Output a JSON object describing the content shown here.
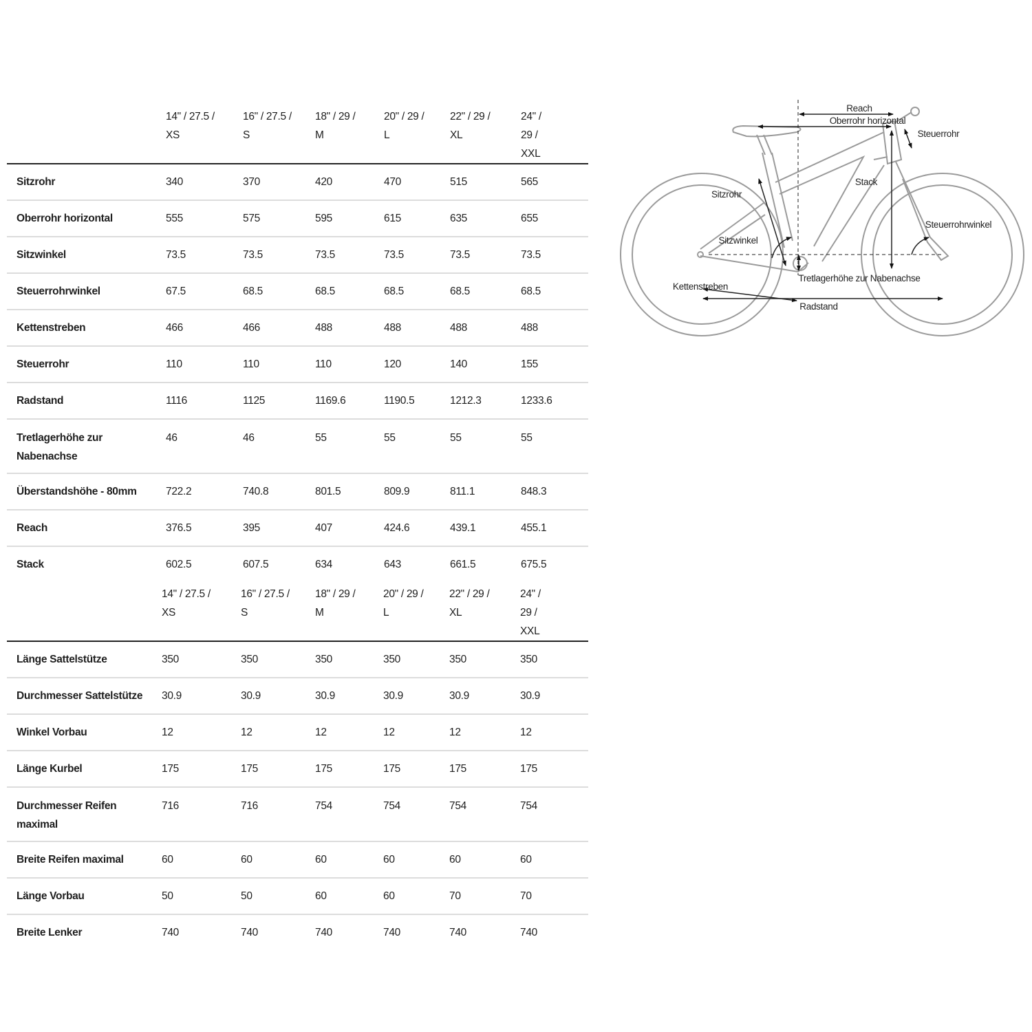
{
  "geometry_table": {
    "columns": [
      [
        "14\" / 27.5 /",
        "XS"
      ],
      [
        "16\" / 27.5 /",
        "S"
      ],
      [
        "18\" / 29 /",
        "M"
      ],
      [
        "20\" / 29 /",
        "L"
      ],
      [
        "22\" / 29 /",
        "XL"
      ],
      [
        "24\" / 29 /",
        "XXL"
      ]
    ],
    "rows": [
      {
        "label": "Sitzrohr",
        "values": [
          "340",
          "370",
          "420",
          "470",
          "515",
          "565"
        ]
      },
      {
        "label": "Oberrohr horizontal",
        "values": [
          "555",
          "575",
          "595",
          "615",
          "635",
          "655"
        ]
      },
      {
        "label": "Sitzwinkel",
        "values": [
          "73.5",
          "73.5",
          "73.5",
          "73.5",
          "73.5",
          "73.5"
        ]
      },
      {
        "label": "Steuerrohrwinkel",
        "values": [
          "67.5",
          "68.5",
          "68.5",
          "68.5",
          "68.5",
          "68.5"
        ]
      },
      {
        "label": "Kettenstreben",
        "values": [
          "466",
          "466",
          "488",
          "488",
          "488",
          "488"
        ]
      },
      {
        "label": "Steuerrohr",
        "values": [
          "110",
          "110",
          "110",
          "120",
          "140",
          "155"
        ]
      },
      {
        "label": "Radstand",
        "values": [
          "1116",
          "1125",
          "1169.6",
          "1190.5",
          "1212.3",
          "1233.6"
        ]
      },
      {
        "label": [
          "Tretlagerhöhe zur",
          "Nabenachse"
        ],
        "values": [
          "46",
          "46",
          "55",
          "55",
          "55",
          "55"
        ]
      },
      {
        "label": "Überstandshöhe - 80mm",
        "values": [
          "722.2",
          "740.8",
          "801.5",
          "809.9",
          "811.1",
          "848.3"
        ]
      },
      {
        "label": "Reach",
        "values": [
          "376.5",
          "395",
          "407",
          "424.6",
          "439.1",
          "455.1"
        ]
      },
      {
        "label": "Stack",
        "values": [
          "602.5",
          "607.5",
          "634",
          "643",
          "661.5",
          "675.5"
        ]
      }
    ]
  },
  "components_table": {
    "columns": [
      [
        "14\" / 27.5 /",
        "XS"
      ],
      [
        "16\" / 27.5 /",
        "S"
      ],
      [
        "18\" / 29 /",
        "M"
      ],
      [
        "20\" / 29 /",
        "L"
      ],
      [
        "22\" / 29 /",
        "XL"
      ],
      [
        "24\" / 29 /",
        "XXL"
      ]
    ],
    "rows": [
      {
        "label": "Länge Sattelstütze",
        "values": [
          "350",
          "350",
          "350",
          "350",
          "350",
          "350"
        ]
      },
      {
        "label": "Durchmesser Sattelstütze",
        "values": [
          "30.9",
          "30.9",
          "30.9",
          "30.9",
          "30.9",
          "30.9"
        ]
      },
      {
        "label": "Winkel Vorbau",
        "values": [
          "12",
          "12",
          "12",
          "12",
          "12",
          "12"
        ]
      },
      {
        "label": "Länge Kurbel",
        "values": [
          "175",
          "175",
          "175",
          "175",
          "175",
          "175"
        ]
      },
      {
        "label": [
          "Durchmesser Reifen",
          "maximal"
        ],
        "values": [
          "716",
          "716",
          "754",
          "754",
          "754",
          "754"
        ]
      },
      {
        "label": "Breite Reifen maximal",
        "values": [
          "60",
          "60",
          "60",
          "60",
          "60",
          "60"
        ]
      },
      {
        "label": "Länge Vorbau",
        "values": [
          "50",
          "50",
          "60",
          "60",
          "70",
          "70"
        ]
      },
      {
        "label": "Breite Lenker",
        "values": [
          "740",
          "740",
          "740",
          "740",
          "740",
          "740"
        ]
      }
    ]
  },
  "diagram": {
    "labels": {
      "reach": "Reach",
      "oberrohr": "Oberrohr horizontal",
      "steuerrohr": "Steuerrohr",
      "stack": "Stack",
      "sitzrohr": "Sitzrohr",
      "steuerrohrwinkel": "Steuerrohrwinkel",
      "sitzwinkel": "Sitzwinkel",
      "tretlager": "Tretlagerhöhe zur Nabenachse",
      "kettenstreben": "Kettenstreben",
      "radstand": "Radstand"
    }
  }
}
